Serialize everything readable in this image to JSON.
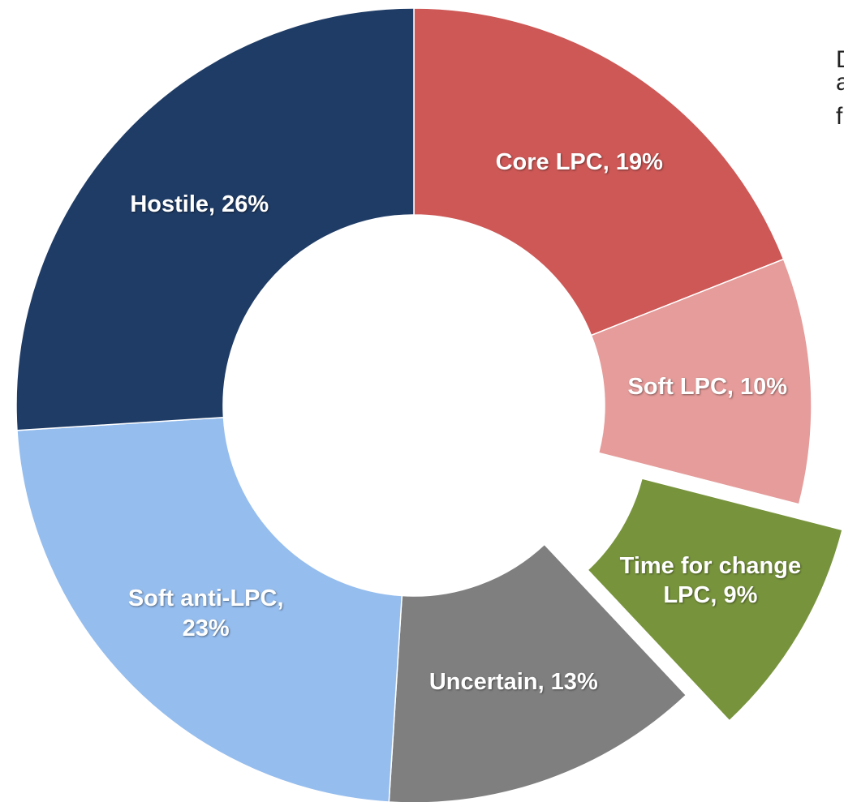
{
  "chart_data": {
    "type": "donut",
    "categories": [
      "Core LPC",
      "Soft LPC",
      "Time for change LPC",
      "Uncertain",
      "Soft anti-LPC",
      "Hostile"
    ],
    "values": [
      19,
      10,
      9,
      13,
      23,
      26
    ],
    "value_labels": [
      "Core LPC, 19%",
      "Soft LPC, 10%",
      "Time for change LPC, 9%",
      "Uncertain, 13%",
      "Soft anti-LPC, 23%",
      "Hostile, 26%"
    ],
    "colors": [
      "#cd5856",
      "#e59c9a",
      "#77933c",
      "#7f7f7f",
      "#95bdee",
      "#1f3c66"
    ],
    "exploded": [
      false,
      false,
      true,
      false,
      false,
      false
    ],
    "annotations": [
      "D",
      "a",
      "f"
    ]
  }
}
